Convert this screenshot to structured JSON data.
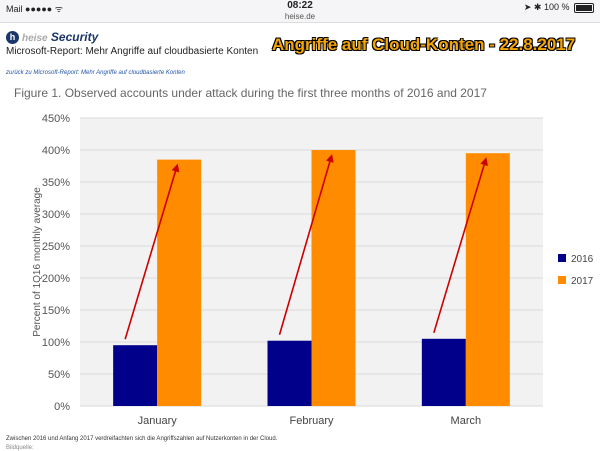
{
  "status_bar": {
    "carrier": "Mail",
    "signal": "●●●●●",
    "wifi": "ᯤ",
    "time": "08:22",
    "url": "heise.de",
    "location_arrow": "➤",
    "bluetooth": "✱",
    "battery": "100 %"
  },
  "header": {
    "logo_text": "heise",
    "logo_sub": "Security",
    "report_title": "Microsoft-Report: Mehr Angriffe auf cloudbasierte Konten",
    "overlay_title": "Angriffe auf Cloud-Konten - 22.8.2017",
    "back_link": "zurück zu Microsoft-Report: Mehr Angriffe auf cloudbasierte Konten"
  },
  "figure_title": "Figure 1. Observed accounts under attack during the first three months of 2016 and 2017",
  "caption": "Zwischen 2016 und Anfang 2017 verdreifachten sich die Angriffszahlen auf Nutzerkonten in der Cloud.",
  "source_label": "Bildquelle:",
  "chart_data": {
    "type": "bar",
    "title": "Figure 1. Observed accounts under attack during the first three months of 2016 and 2017",
    "categories": [
      "January",
      "February",
      "March"
    ],
    "series": [
      {
        "name": "2016",
        "values": [
          95,
          102,
          105
        ],
        "color": "#00008b"
      },
      {
        "name": "2017",
        "values": [
          385,
          400,
          395
        ],
        "color": "#ff8c00"
      }
    ],
    "ylabel": "Percent of 1Q16 monthly average",
    "xlabel": "",
    "ylim": [
      0,
      450
    ],
    "yticks": [
      0,
      50,
      100,
      150,
      200,
      250,
      300,
      350,
      400,
      450
    ],
    "ytick_labels": [
      "0%",
      "50%",
      "100%",
      "150%",
      "200%",
      "250%",
      "300%",
      "350%",
      "400%",
      "450%"
    ],
    "grid": true,
    "legend": "right",
    "annotations": "red arrows pointing from each 2016 bar top to the matching 2017 bar top",
    "arrow_color": "#cc0000",
    "background": "#f2f2f2"
  }
}
